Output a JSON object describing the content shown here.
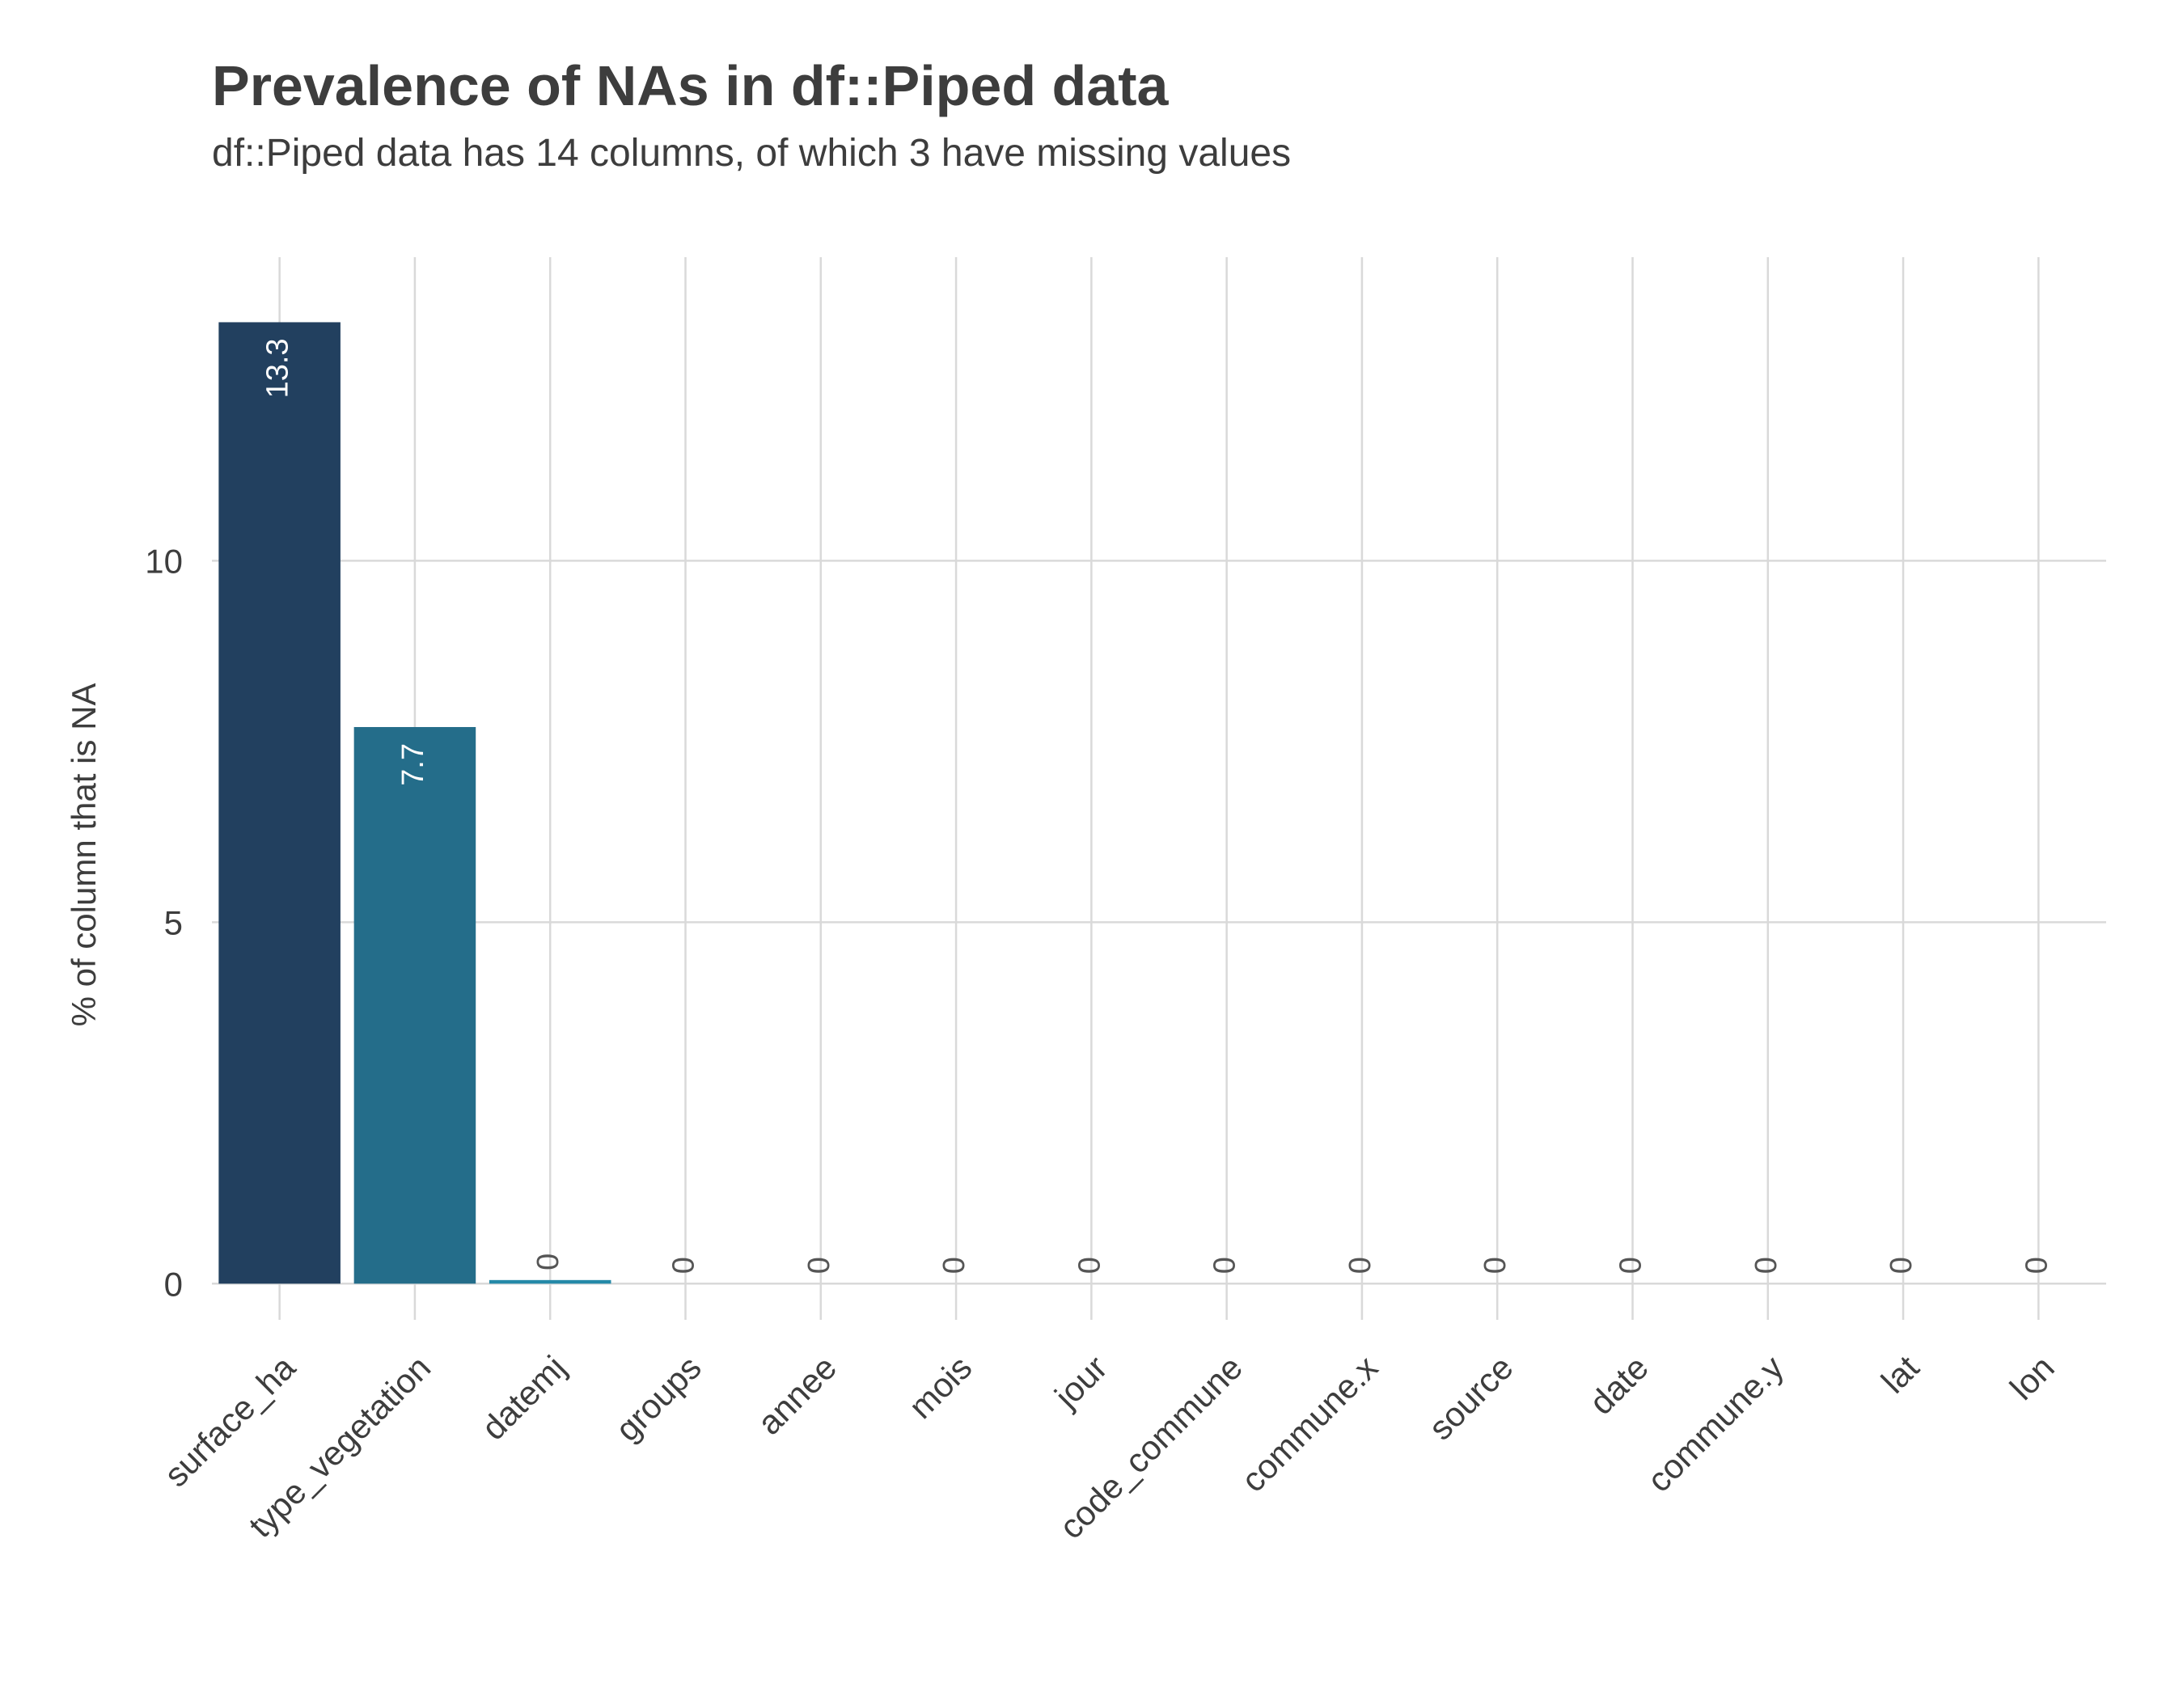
{
  "chart_data": {
    "type": "bar",
    "title": "Prevalence of NAs in df::Piped data",
    "subtitle": "df::Piped data has 14 columns, of which 3 have missing values",
    "xlabel": "",
    "ylabel": "% of column that is NA",
    "ylim": [
      -0.5,
      14.2
    ],
    "yticks": [
      0,
      5,
      10
    ],
    "grid": true,
    "legend": "none",
    "categories": [
      "surface_ha",
      "type_vegetation",
      "datemj",
      "groups",
      "annee",
      "mois",
      "jour",
      "code_commune",
      "commune.x",
      "source",
      "date",
      "commune.y",
      "lat",
      "lon"
    ],
    "values": [
      13.3,
      7.7,
      0.05,
      0,
      0,
      0,
      0,
      0,
      0,
      0,
      0,
      0,
      0,
      0
    ],
    "value_labels": [
      "13.3",
      "7.7",
      "0",
      "0",
      "0",
      "0",
      "0",
      "0",
      "0",
      "0",
      "0",
      "0",
      "0",
      "0"
    ],
    "bar_colors": [
      "#22405f",
      "#246d8a",
      "#2489a8",
      "#2489a8",
      "#2489a8",
      "#2489a8",
      "#2489a8",
      "#2489a8",
      "#2489a8",
      "#2489a8",
      "#2489a8",
      "#2489a8",
      "#2489a8",
      "#2489a8"
    ],
    "gridline_color": "#d9d9d9",
    "inside_label_color": "#ffffff",
    "outside_label_color": "#555555"
  }
}
